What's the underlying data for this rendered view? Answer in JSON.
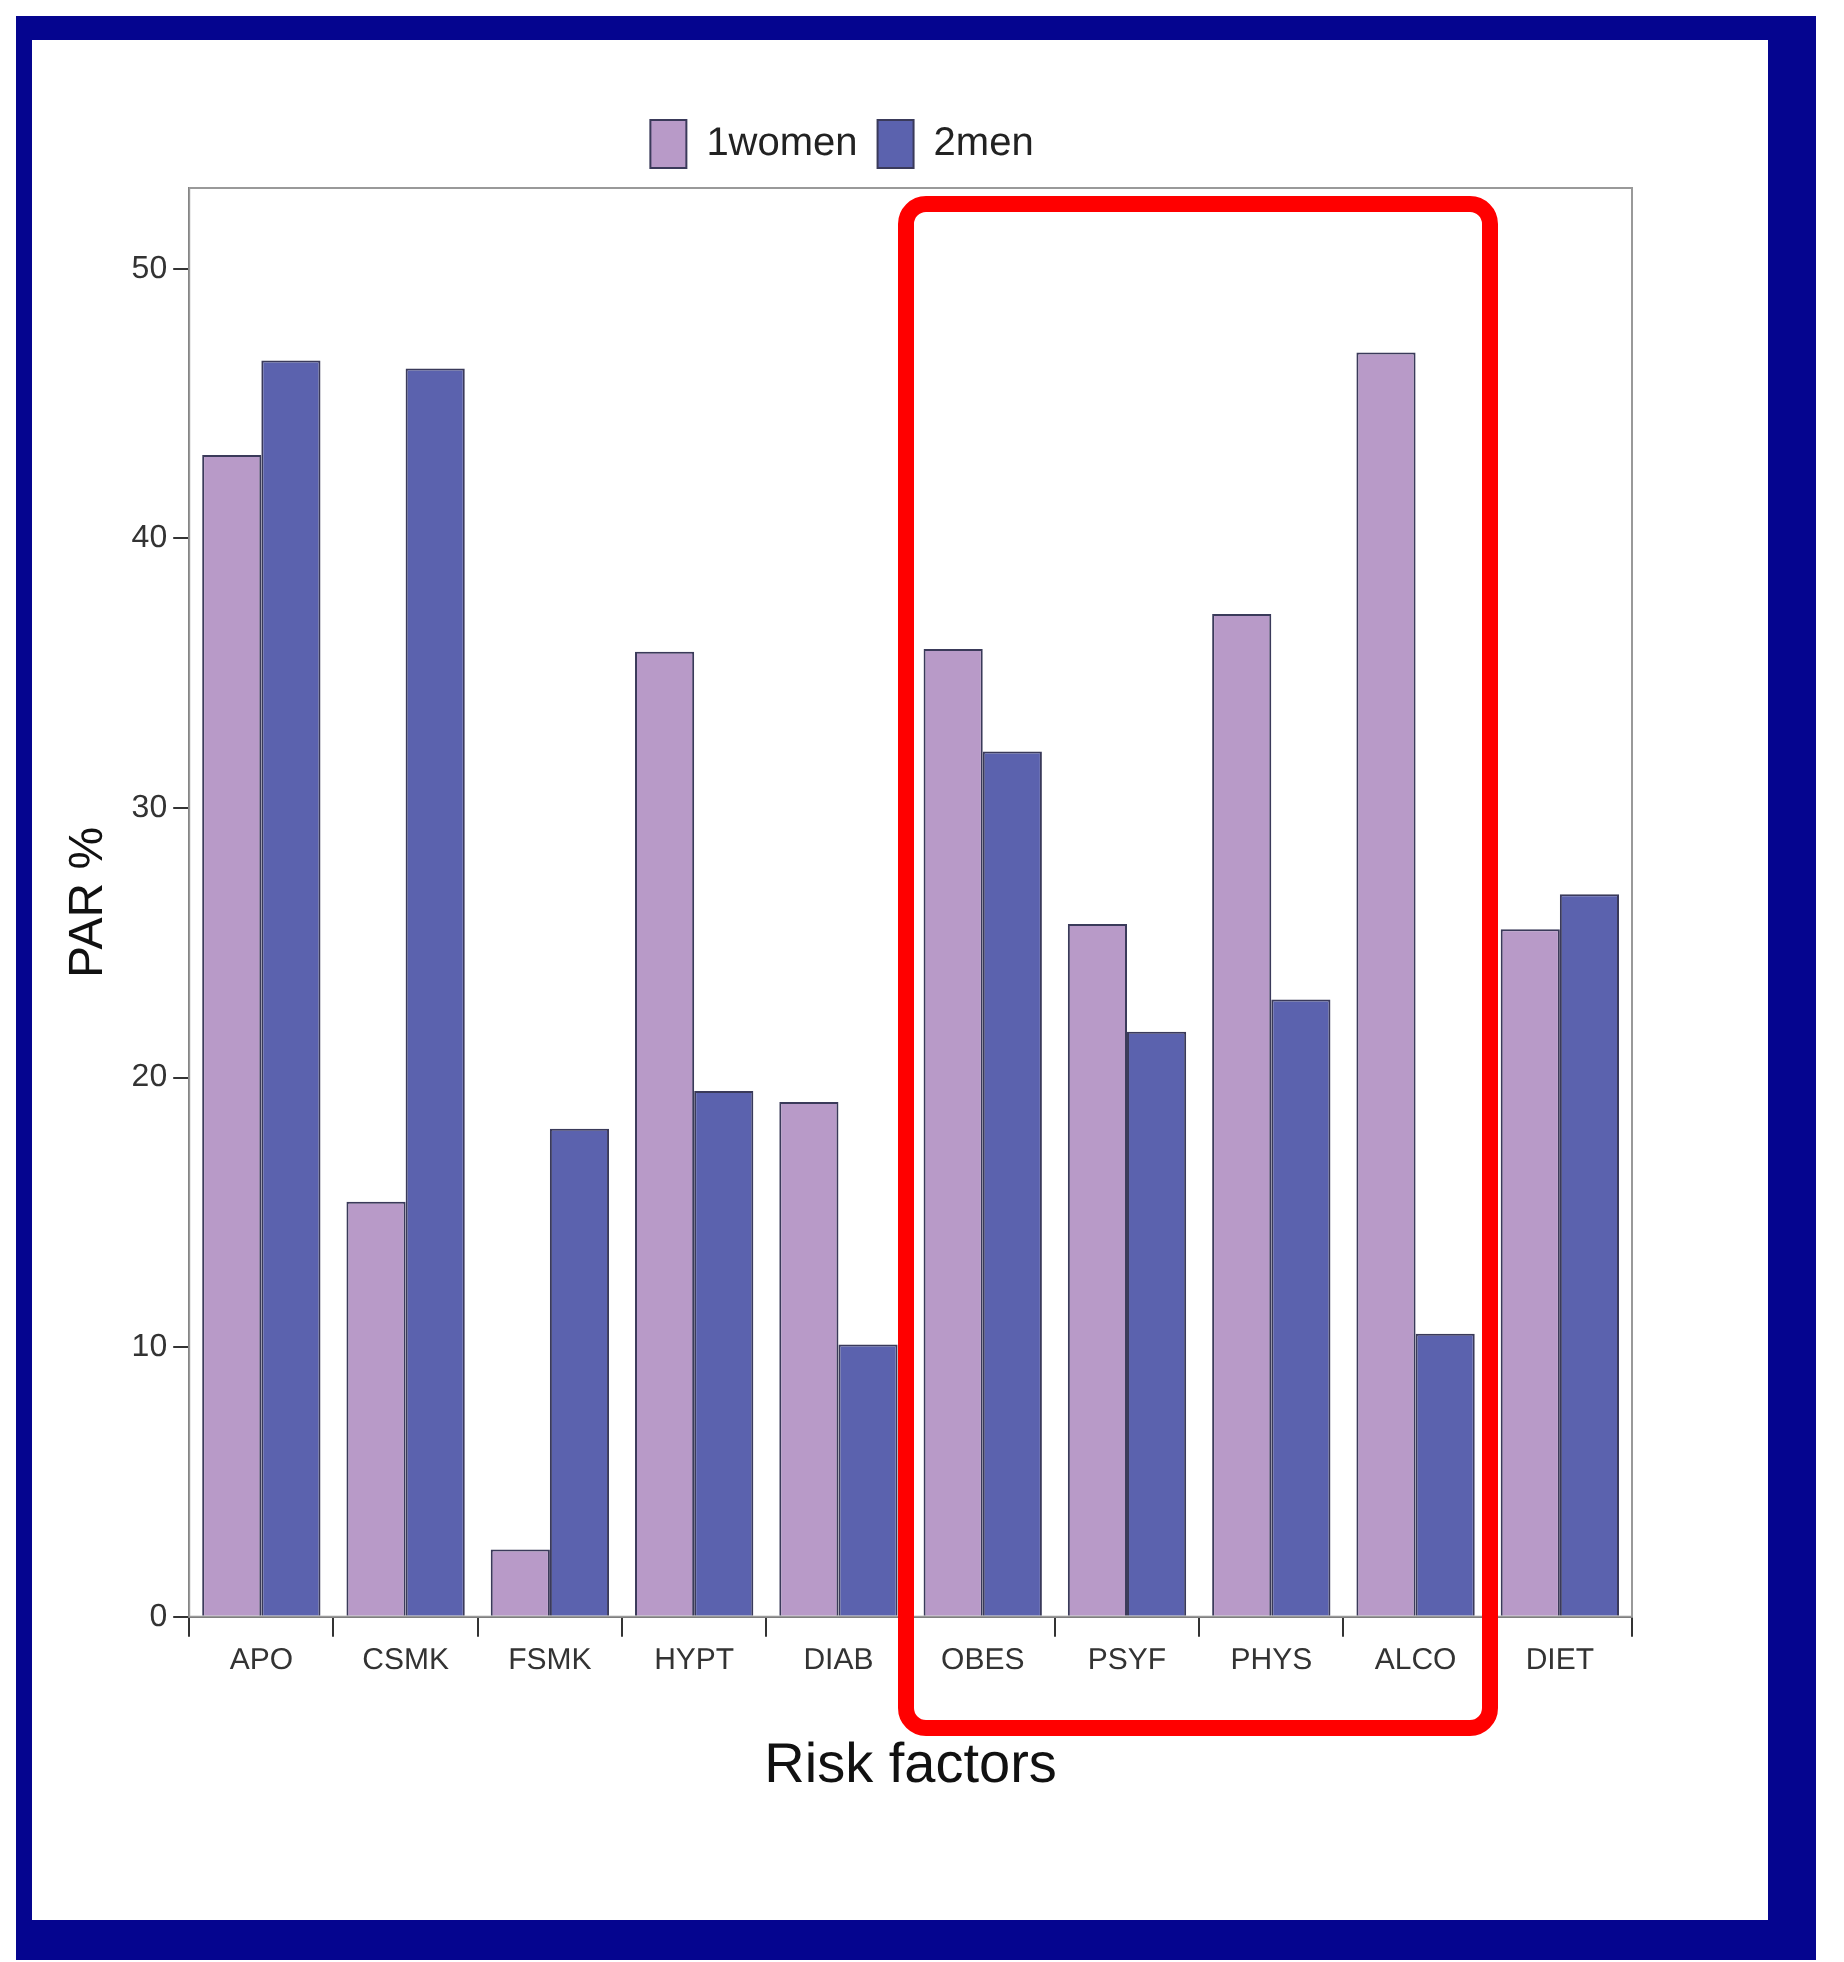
{
  "chart_data": {
    "type": "bar",
    "xlabel": "Risk factors",
    "ylabel": "PAR %",
    "categories": [
      "APO",
      "CSMK",
      "FSMK",
      "HYPT",
      "DIAB",
      "OBES",
      "PSYF",
      "PHYS",
      "ALCO",
      "DIET"
    ],
    "series": [
      {
        "name": "1women",
        "color": "#b89ac8",
        "values": [
          43.1,
          15.4,
          2.5,
          35.8,
          19.1,
          35.9,
          25.7,
          37.2,
          46.9,
          25.5
        ]
      },
      {
        "name": "2men",
        "color": "#5b62ae",
        "values": [
          46.6,
          46.3,
          18.1,
          19.5,
          10.1,
          32.1,
          21.7,
          22.9,
          10.5,
          26.8
        ]
      }
    ],
    "ylim": [
      0,
      53
    ],
    "yticks": [
      0,
      10,
      20,
      30,
      40,
      50
    ],
    "legend": "top"
  }
}
